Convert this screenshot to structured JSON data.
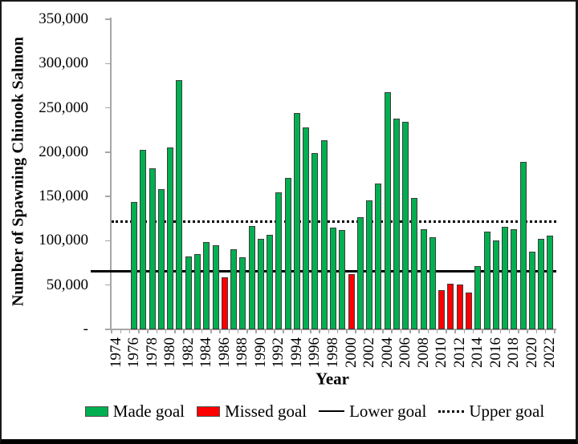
{
  "chart": {
    "y_axis": {
      "title": "Number of Spawning Chinook Salmon",
      "ticks": [
        {
          "value": 350000,
          "label": "350,000"
        },
        {
          "value": 300000,
          "label": "300,000"
        },
        {
          "value": 250000,
          "label": "250,000"
        },
        {
          "value": 200000,
          "label": "200,000"
        },
        {
          "value": 150000,
          "label": "150,000"
        },
        {
          "value": 100000,
          "label": "100,000"
        },
        {
          "value": 50000,
          "label": "50,000"
        },
        {
          "value": 0,
          "label": "-"
        }
      ]
    },
    "x_axis": {
      "title": "Year",
      "start_year": 1974,
      "end_year": 2022,
      "label_step": 2
    },
    "legend": [
      {
        "label": "Made goal",
        "marker": "swatch",
        "color": "#00B050"
      },
      {
        "label": "Missed goal",
        "marker": "swatch",
        "color": "#FF0000"
      },
      {
        "label": "Lower goal",
        "marker": "solid-line",
        "color": "#000000"
      },
      {
        "label": "Upper goal",
        "marker": "dotted-line",
        "color": "#000000"
      }
    ],
    "colors": {
      "made": "#00B050",
      "missed": "#FF0000",
      "bar_outline": "#3d3d3d",
      "axis": "#a6a6a6",
      "goal_lines": "#000000"
    }
  },
  "chart_data": {
    "type": "bar",
    "title": "",
    "xlabel": "Year",
    "ylabel": "Number of Spawning Chinook Salmon",
    "ylim": [
      0,
      350000
    ],
    "x_categories_range": [
      1974,
      2022
    ],
    "grid": false,
    "legend_position": "bottom",
    "lower_goal": 66000,
    "upper_goal": 122000,
    "bars": [
      {
        "year": 1976,
        "value": 144000,
        "status": "made"
      },
      {
        "year": 1977,
        "value": 203000,
        "status": "made"
      },
      {
        "year": 1978,
        "value": 182000,
        "status": "made"
      },
      {
        "year": 1979,
        "value": 158000,
        "status": "made"
      },
      {
        "year": 1980,
        "value": 205000,
        "status": "made"
      },
      {
        "year": 1981,
        "value": 281000,
        "status": "made"
      },
      {
        "year": 1982,
        "value": 82000,
        "status": "made"
      },
      {
        "year": 1983,
        "value": 85000,
        "status": "made"
      },
      {
        "year": 1984,
        "value": 99000,
        "status": "made"
      },
      {
        "year": 1985,
        "value": 95000,
        "status": "made"
      },
      {
        "year": 1986,
        "value": 59000,
        "status": "missed"
      },
      {
        "year": 1987,
        "value": 90000,
        "status": "made"
      },
      {
        "year": 1988,
        "value": 81000,
        "status": "made"
      },
      {
        "year": 1989,
        "value": 117000,
        "status": "made"
      },
      {
        "year": 1990,
        "value": 102000,
        "status": "made"
      },
      {
        "year": 1991,
        "value": 107000,
        "status": "made"
      },
      {
        "year": 1992,
        "value": 155000,
        "status": "made"
      },
      {
        "year": 1993,
        "value": 171000,
        "status": "made"
      },
      {
        "year": 1994,
        "value": 244000,
        "status": "made"
      },
      {
        "year": 1995,
        "value": 228000,
        "status": "made"
      },
      {
        "year": 1996,
        "value": 199000,
        "status": "made"
      },
      {
        "year": 1997,
        "value": 213000,
        "status": "made"
      },
      {
        "year": 1998,
        "value": 115000,
        "status": "made"
      },
      {
        "year": 1999,
        "value": 112000,
        "status": "made"
      },
      {
        "year": 2000,
        "value": 62000,
        "status": "missed"
      },
      {
        "year": 2001,
        "value": 127000,
        "status": "made"
      },
      {
        "year": 2002,
        "value": 146000,
        "status": "made"
      },
      {
        "year": 2003,
        "value": 165000,
        "status": "made"
      },
      {
        "year": 2004,
        "value": 268000,
        "status": "made"
      },
      {
        "year": 2005,
        "value": 238000,
        "status": "made"
      },
      {
        "year": 2006,
        "value": 234000,
        "status": "made"
      },
      {
        "year": 2007,
        "value": 148000,
        "status": "made"
      },
      {
        "year": 2008,
        "value": 113000,
        "status": "made"
      },
      {
        "year": 2009,
        "value": 104000,
        "status": "made"
      },
      {
        "year": 2010,
        "value": 44000,
        "status": "missed"
      },
      {
        "year": 2011,
        "value": 52000,
        "status": "missed"
      },
      {
        "year": 2012,
        "value": 51000,
        "status": "missed"
      },
      {
        "year": 2013,
        "value": 42000,
        "status": "missed"
      },
      {
        "year": 2014,
        "value": 71000,
        "status": "made"
      },
      {
        "year": 2015,
        "value": 110000,
        "status": "made"
      },
      {
        "year": 2016,
        "value": 100000,
        "status": "made"
      },
      {
        "year": 2017,
        "value": 116000,
        "status": "made"
      },
      {
        "year": 2018,
        "value": 113000,
        "status": "made"
      },
      {
        "year": 2019,
        "value": 189000,
        "status": "made"
      },
      {
        "year": 2020,
        "value": 88000,
        "status": "made"
      },
      {
        "year": 2021,
        "value": 102000,
        "status": "made"
      },
      {
        "year": 2022,
        "value": 106000,
        "status": "made"
      }
    ]
  }
}
